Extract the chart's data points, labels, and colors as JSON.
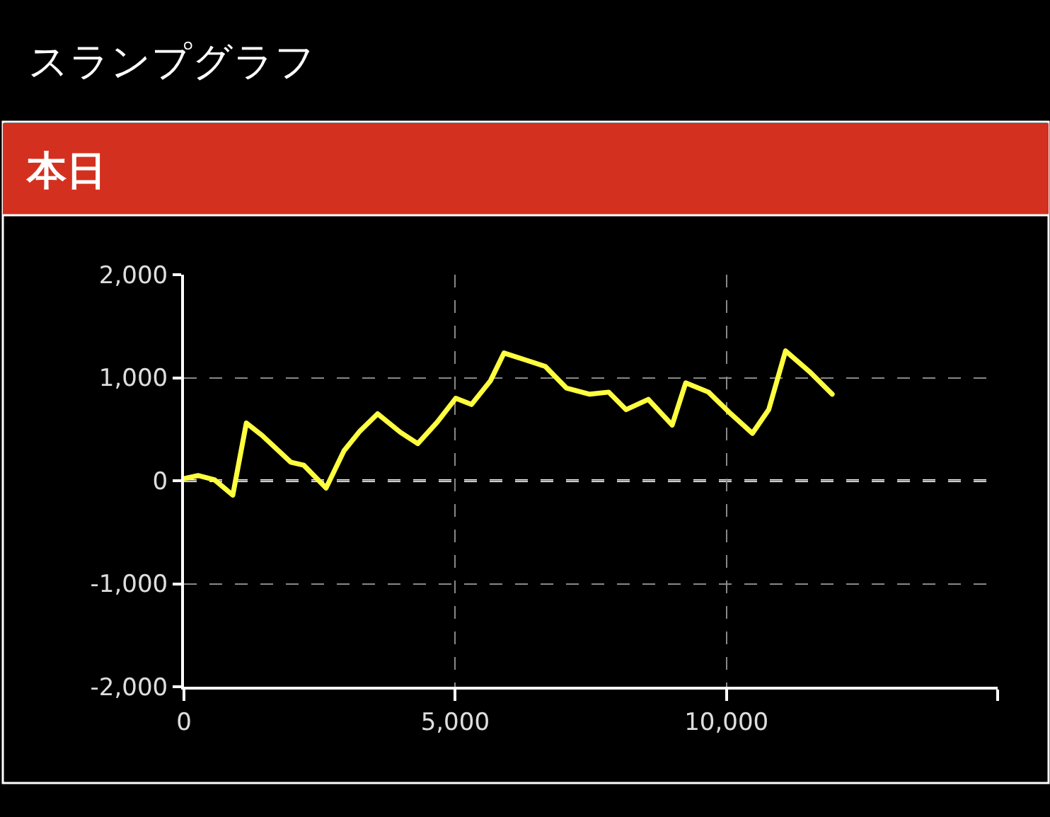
{
  "chart_data": {
    "type": "line",
    "title": "スランプグラフ",
    "subtitle": "本日",
    "x": [
      0,
      260,
      560,
      900,
      1150,
      1440,
      1970,
      2210,
      2620,
      2950,
      3240,
      3570,
      3990,
      4310,
      4670,
      5010,
      5300,
      5650,
      5900,
      6310,
      6660,
      7050,
      7480,
      7830,
      8150,
      8560,
      9000,
      9250,
      9670,
      10080,
      10480,
      10780,
      11090,
      11530,
      11950
    ],
    "series": [
      {
        "color": "#ffff40",
        "values": [
          20,
          50,
          10,
          -140,
          560,
          440,
          180,
          150,
          -70,
          290,
          480,
          650,
          470,
          360,
          570,
          800,
          740,
          970,
          1240,
          1170,
          1110,
          900,
          840,
          860,
          690,
          790,
          540,
          950,
          860,
          650,
          460,
          690,
          1260,
          1060,
          840
        ]
      }
    ],
    "xlim": [
      0,
      15000
    ],
    "xticks": [
      0,
      {
        "value": 5000,
        "label": "5,000"
      },
      {
        "value": 10000,
        "label": "10,000"
      },
      {
        "value": 15000,
        "label": null
      }
    ],
    "ylim": [
      -2000,
      2000
    ],
    "yticks": [
      {
        "value": -2000,
        "label": "-2,000"
      },
      {
        "value": -1000,
        "label": "-1,000"
      },
      0,
      {
        "value": 1000,
        "label": "1,000"
      },
      {
        "value": 2000,
        "label": "2,000"
      }
    ],
    "ref_lines": [
      {
        "axis": "y",
        "value": 0,
        "color": "#ffffff",
        "line_style": "dashed"
      }
    ],
    "grid": true,
    "marker": "none",
    "line_style": "solid"
  }
}
